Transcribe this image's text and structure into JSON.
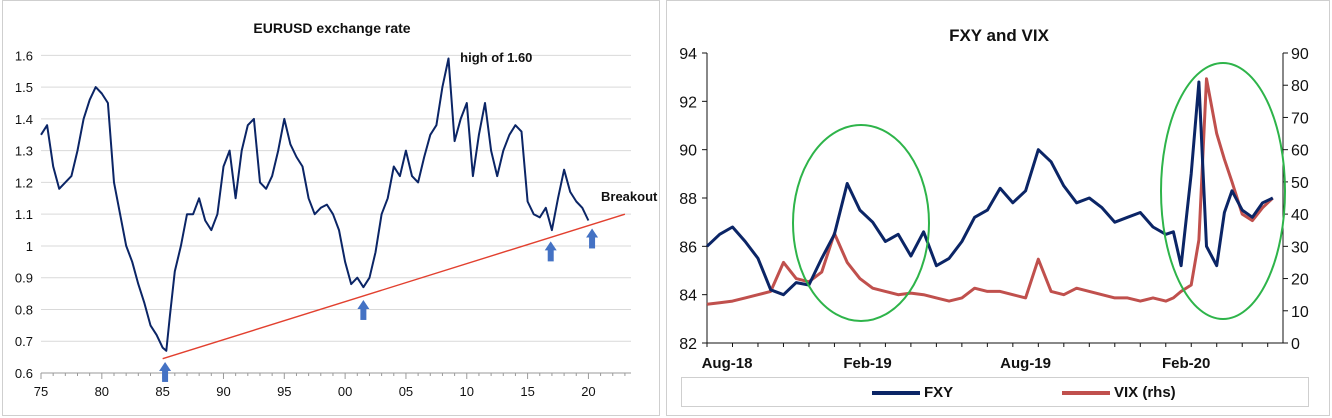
{
  "chart_data": [
    {
      "type": "line",
      "title": "EURUSD exchange rate",
      "x_ticks": [
        "75",
        "80",
        "85",
        "90",
        "95",
        "00",
        "05",
        "10",
        "15",
        "20"
      ],
      "y_ticks": [
        "0.6",
        "0.7",
        "0.8",
        "0.9",
        "1",
        "1.1",
        "1.2",
        "1.3",
        "1.4",
        "1.5",
        "1.6"
      ],
      "xlim": [
        1975,
        2023.5
      ],
      "ylim": [
        0.6,
        1.62
      ],
      "grid": true,
      "series": [
        {
          "color": "#0b2566",
          "x": [
            1975.0,
            1975.5,
            1976.0,
            1976.5,
            1977.0,
            1977.5,
            1978.0,
            1978.5,
            1979.0,
            1979.5,
            1980.0,
            1980.5,
            1981.0,
            1981.5,
            1982.0,
            1982.5,
            1983.0,
            1983.5,
            1984.0,
            1984.5,
            1985.0,
            1985.3,
            1985.6,
            1986.0,
            1986.5,
            1987.0,
            1987.5,
            1988.0,
            1988.5,
            1989.0,
            1989.5,
            1990.0,
            1990.5,
            1991.0,
            1991.5,
            1992.0,
            1992.5,
            1993.0,
            1993.5,
            1994.0,
            1994.5,
            1995.0,
            1995.5,
            1996.0,
            1996.5,
            1997.0,
            1997.5,
            1998.0,
            1998.5,
            1999.0,
            1999.5,
            2000.0,
            2000.5,
            2001.0,
            2001.5,
            2002.0,
            2002.5,
            2003.0,
            2003.5,
            2004.0,
            2004.5,
            2005.0,
            2005.5,
            2006.0,
            2006.5,
            2007.0,
            2007.5,
            2008.0,
            2008.5,
            2009.0,
            2009.5,
            2010.0,
            2010.5,
            2011.0,
            2011.5,
            2012.0,
            2012.5,
            2013.0,
            2013.5,
            2014.0,
            2014.5,
            2015.0,
            2015.5,
            2016.0,
            2016.5,
            2017.0,
            2017.5,
            2018.0,
            2018.5,
            2019.0,
            2019.5,
            2020.0
          ],
          "y": [
            1.35,
            1.38,
            1.25,
            1.18,
            1.2,
            1.22,
            1.3,
            1.4,
            1.46,
            1.5,
            1.48,
            1.45,
            1.2,
            1.1,
            1.0,
            0.95,
            0.88,
            0.82,
            0.75,
            0.72,
            0.68,
            0.67,
            0.78,
            0.92,
            1.0,
            1.1,
            1.1,
            1.15,
            1.08,
            1.05,
            1.1,
            1.25,
            1.3,
            1.15,
            1.3,
            1.38,
            1.4,
            1.2,
            1.18,
            1.22,
            1.3,
            1.4,
            1.32,
            1.28,
            1.25,
            1.15,
            1.1,
            1.12,
            1.13,
            1.1,
            1.05,
            0.95,
            0.88,
            0.9,
            0.87,
            0.9,
            0.98,
            1.1,
            1.15,
            1.25,
            1.22,
            1.3,
            1.22,
            1.2,
            1.28,
            1.35,
            1.38,
            1.5,
            1.59,
            1.33,
            1.4,
            1.45,
            1.22,
            1.35,
            1.45,
            1.3,
            1.22,
            1.3,
            1.35,
            1.38,
            1.36,
            1.14,
            1.1,
            1.09,
            1.12,
            1.05,
            1.15,
            1.24,
            1.17,
            1.14,
            1.12,
            1.08
          ]
        }
      ],
      "annotations": {
        "high_label": "high of 1.60",
        "breakout_label": "Breakout",
        "trendline": {
          "x": [
            1985.0,
            2023.0
          ],
          "y": [
            0.645,
            1.1
          ],
          "color": "#e2402f"
        },
        "arrows_x": [
          1985.2,
          2001.5,
          2016.9,
          2020.3
        ]
      }
    },
    {
      "type": "line",
      "title": "FXY and VIX",
      "x_ticks": [
        "Aug-18",
        "Feb-19",
        "Aug-19",
        "Feb-20"
      ],
      "x_tick_pos": [
        0,
        6.3,
        12.5,
        18.8
      ],
      "xlim": [
        0,
        22.6
      ],
      "y_left_ticks": [
        "82",
        "84",
        "86",
        "88",
        "90",
        "92",
        "94"
      ],
      "ylim_left": [
        82,
        94
      ],
      "y_right_ticks": [
        "0",
        "10",
        "20",
        "30",
        "40",
        "50",
        "60",
        "70",
        "80",
        "90"
      ],
      "ylim_right": [
        0,
        90
      ],
      "series": [
        {
          "name": "FXY",
          "color": "#0b2566",
          "x": [
            0,
            0.5,
            1.0,
            1.5,
            2.0,
            2.5,
            3.0,
            3.5,
            4.0,
            4.5,
            5.0,
            5.5,
            6.0,
            6.5,
            7.0,
            7.5,
            8.0,
            8.5,
            9.0,
            9.5,
            10.0,
            10.5,
            11.0,
            11.5,
            12.0,
            12.5,
            13.0,
            13.5,
            14.0,
            14.5,
            15.0,
            15.5,
            16.0,
            16.5,
            17.0,
            17.5,
            18.0,
            18.3,
            18.6,
            19.0,
            19.3,
            19.6,
            20.0,
            20.3,
            20.6,
            21.0,
            21.4,
            21.8,
            22.2
          ],
          "y": [
            86.0,
            86.5,
            86.8,
            86.2,
            85.5,
            84.2,
            84.0,
            84.5,
            84.4,
            85.5,
            86.5,
            88.6,
            87.5,
            87.0,
            86.2,
            86.5,
            85.6,
            86.6,
            85.2,
            85.5,
            86.2,
            87.2,
            87.5,
            88.4,
            87.8,
            88.3,
            90.0,
            89.5,
            88.5,
            87.8,
            88.0,
            87.6,
            87.0,
            87.2,
            87.4,
            86.8,
            86.5,
            86.6,
            85.2,
            89.0,
            92.8,
            86.0,
            85.2,
            87.4,
            88.3,
            87.5,
            87.2,
            87.8,
            88.0
          ]
        },
        {
          "name": "VIX (rhs)",
          "color": "#c0504d",
          "x": [
            0,
            0.5,
            1.0,
            1.5,
            2.0,
            2.5,
            3.0,
            3.5,
            4.0,
            4.5,
            5.0,
            5.5,
            6.0,
            6.5,
            7.0,
            7.5,
            8.0,
            8.5,
            9.0,
            9.5,
            10.0,
            10.5,
            11.0,
            11.5,
            12.0,
            12.5,
            13.0,
            13.5,
            14.0,
            14.5,
            15.0,
            15.5,
            16.0,
            16.5,
            17.0,
            17.5,
            18.0,
            18.3,
            18.6,
            19.0,
            19.3,
            19.6,
            20.0,
            20.3,
            20.6,
            21.0,
            21.4,
            21.8,
            22.2
          ],
          "y": [
            12,
            12.5,
            13,
            14,
            15,
            16,
            25,
            20,
            19,
            22,
            34,
            25,
            20,
            17,
            16,
            15,
            15.5,
            15,
            14,
            13,
            14,
            17,
            16,
            16,
            15,
            14,
            26,
            16,
            15,
            17,
            16,
            15,
            14,
            14,
            13,
            14,
            13,
            14,
            16,
            18,
            32,
            82,
            65,
            57,
            50,
            40,
            38,
            42,
            45
          ]
        }
      ],
      "legend_position": "bottom"
    }
  ]
}
